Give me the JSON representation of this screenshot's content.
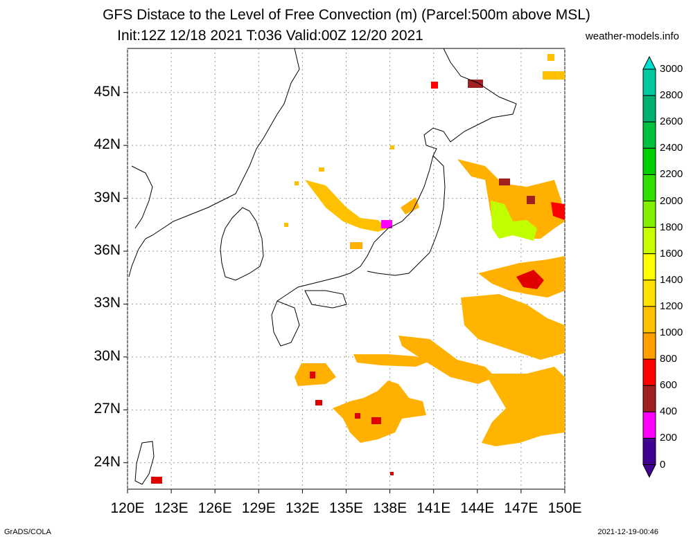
{
  "title": {
    "line1": "GFS Distace to the Level of Free Convection (m) (Parcel:500m above MSL)",
    "line2": "Init:12Z 12/18 2021 T:036 Valid:00Z 12/20 2021"
  },
  "site": "weather-models.info",
  "footer": {
    "credit": "GrADS/COLA",
    "timestamp": "2021-12-19-00:46"
  },
  "map": {
    "lon_range": [
      120,
      150
    ],
    "lat_range": [
      22.5,
      47.5
    ],
    "lon_ticks": [
      "120E",
      "123E",
      "126E",
      "129E",
      "132E",
      "135E",
      "138E",
      "141E",
      "144E",
      "147E",
      "150E"
    ],
    "lat_ticks": [
      "45N",
      "42N",
      "39N",
      "36N",
      "33N",
      "30N",
      "27N",
      "24N"
    ],
    "colorbar": {
      "labels": [
        "3000",
        "2800",
        "2600",
        "2400",
        "2200",
        "2000",
        "1800",
        "1600",
        "1400",
        "1200",
        "1000",
        "800",
        "600",
        "400",
        "200",
        "0"
      ],
      "colors": [
        "#00e0d0",
        "#00c8a0",
        "#00b070",
        "#00c040",
        "#00d000",
        "#30e000",
        "#80f000",
        "#c8ff00",
        "#ffff00",
        "#ffe000",
        "#ffc000",
        "#ffa000",
        "#ff0000",
        "#a02020",
        "#ff00ff",
        "#400090"
      ]
    }
  }
}
